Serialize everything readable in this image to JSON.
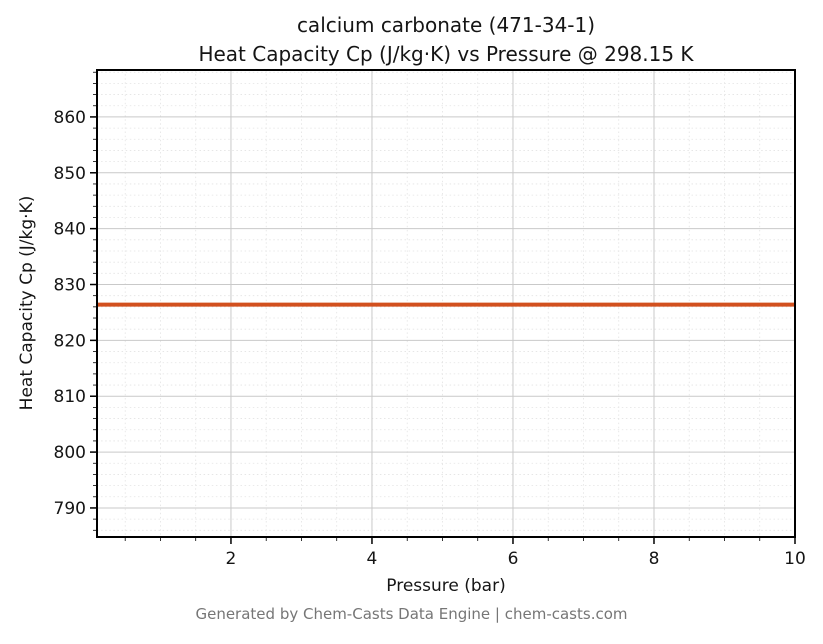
{
  "page": {
    "background": "#ffffff"
  },
  "chart_data": {
    "type": "line",
    "title": "calcium carbonate (471-34-1)\nHeat Capacity Cp (J/kg·K) vs Pressure @ 298.15 K",
    "title_lines": [
      "calcium carbonate (471-34-1)",
      "Heat Capacity Cp (J/kg·K) vs Pressure @ 298.15 K"
    ],
    "xlabel": "Pressure (bar)",
    "ylabel": "Heat Capacity Cp (J/kg·K)",
    "footer": "Generated by Chem-Casts Data Engine | chem-casts.com",
    "xlim": [
      0.1,
      10
    ],
    "ylim": [
      784.8,
      868.4
    ],
    "x_ticks": [
      2,
      4,
      6,
      8,
      10
    ],
    "y_ticks": [
      790,
      800,
      810,
      820,
      830,
      840,
      850,
      860
    ],
    "x_minor_step": 0.5,
    "y_minor_step": 2,
    "grid": "both",
    "colors": {
      "line": "#d2501e",
      "grid_major": "#c9c9c9",
      "grid_minor": "#e3e3e3",
      "axis": "#000000",
      "footer_text": "#767676"
    },
    "series": [
      {
        "name": "Heat Capacity Cp",
        "color": "#d2501e",
        "line_width": 4,
        "x": [
          0.1,
          10.0
        ],
        "y": [
          826.4,
          826.4
        ]
      }
    ]
  }
}
